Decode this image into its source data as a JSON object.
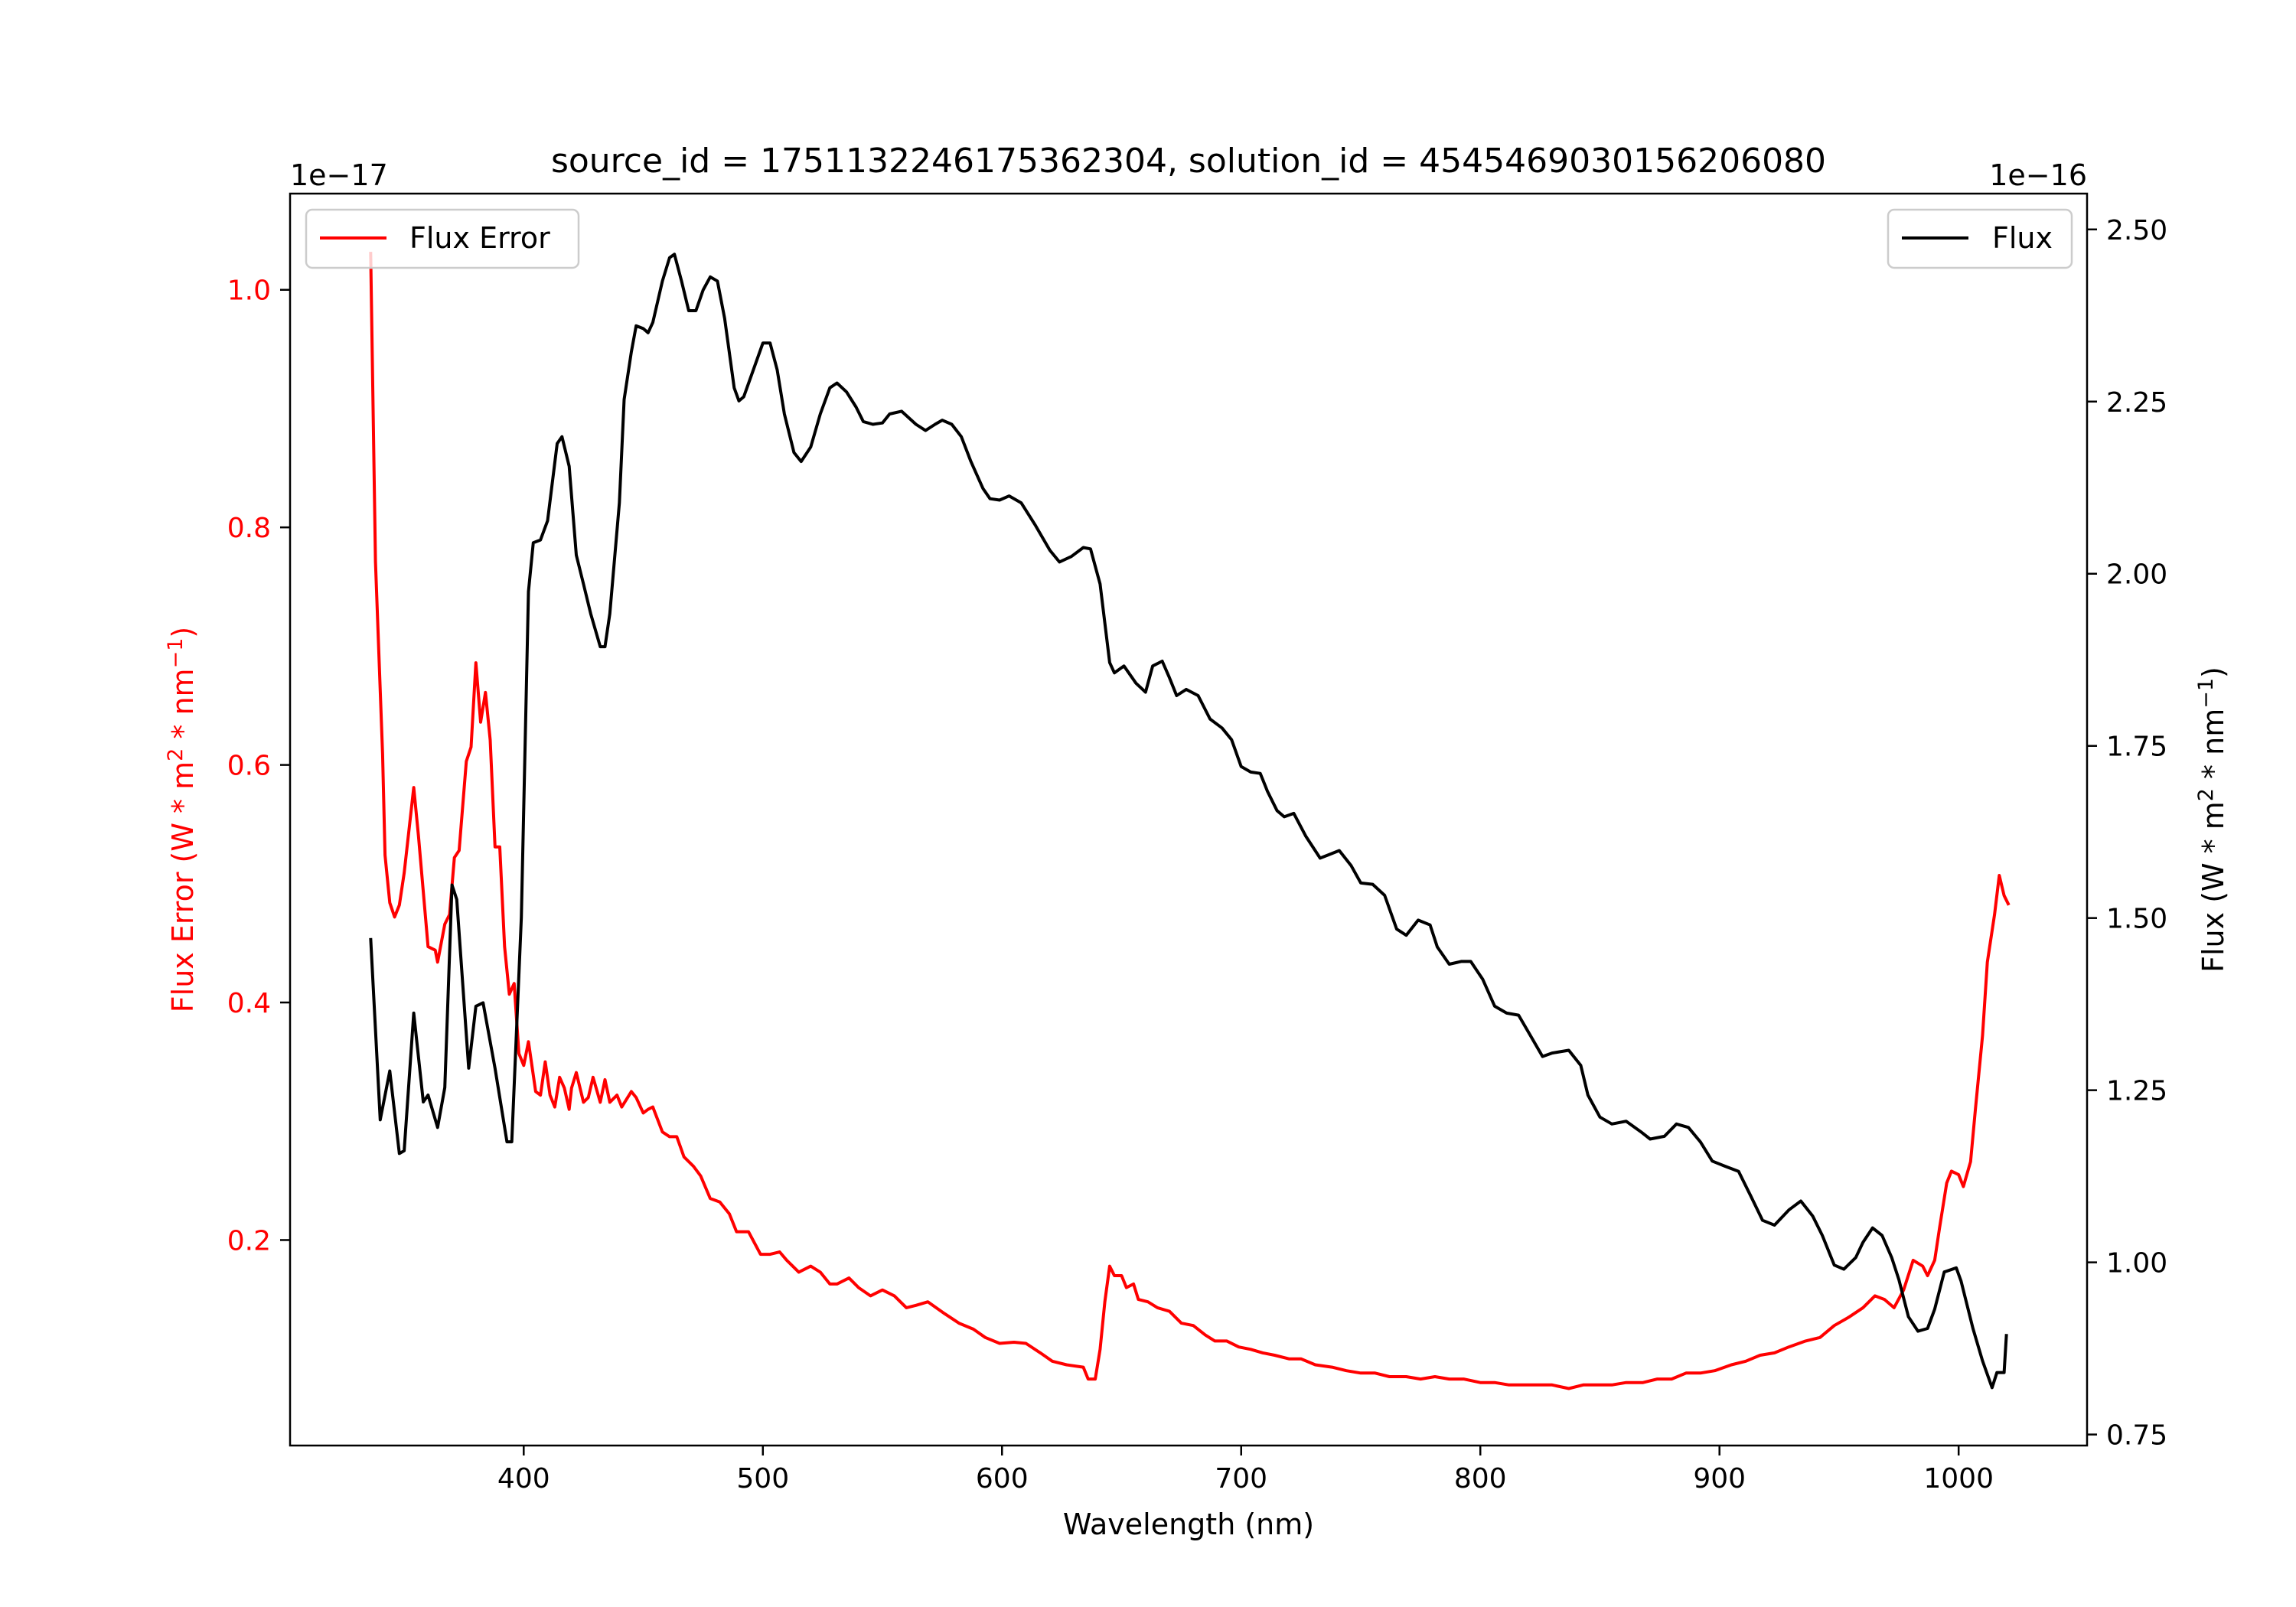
{
  "chart_data": {
    "type": "line",
    "title": "source_id = 1751132246175362304, solution_id = 4545469030156206080",
    "xlabel": "Wavelength (nm)",
    "ylabel_left": "Flux Error (W * m^2 * nm^-1)",
    "ylabel_right": "Flux (W * m^2 * nm^-1)",
    "ylabel_left_parts": [
      "Flux Error (W * m",
      "2",
      " * nm",
      "−1",
      ")"
    ],
    "ylabel_right_parts": [
      "Flux (W * m",
      "2",
      " * nm",
      "−1",
      ")"
    ],
    "left_offset_label": "1e−17",
    "right_offset_label": "1e−16",
    "xlim": [
      302.3,
      1053.7
    ],
    "ylim_left": [
      0.027,
      1.081
    ],
    "ylim_right": [
      0.734,
      2.552
    ],
    "x_ticks": [
      400,
      500,
      600,
      700,
      800,
      900,
      1000
    ],
    "x_tick_labels": [
      "400",
      "500",
      "600",
      "700",
      "800",
      "900",
      "1000"
    ],
    "left_ticks": [
      0.2,
      0.4,
      0.6,
      0.8,
      1.0
    ],
    "left_tick_labels": [
      "0.2",
      "0.4",
      "0.6",
      "0.8",
      "1.0"
    ],
    "right_ticks": [
      0.75,
      1.0,
      1.25,
      1.5,
      1.75,
      2.0,
      2.25,
      2.5
    ],
    "right_tick_labels": [
      "0.75",
      "1.00",
      "1.25",
      "1.50",
      "1.75",
      "2.00",
      "2.25",
      "2.50"
    ],
    "grid": false,
    "legend": [
      {
        "label": "Flux Error",
        "placement": "top-left",
        "axis": "left"
      },
      {
        "label": "Flux",
        "placement": "top-right",
        "axis": "right"
      }
    ],
    "series": [
      {
        "name": "Flux Error",
        "axis": "left",
        "color": "#ff0000",
        "x": [
          336,
          338,
          341,
          342,
          344,
          346,
          348,
          350,
          354,
          356,
          360,
          363,
          364,
          367,
          369,
          371,
          373,
          376,
          378,
          380,
          382,
          384,
          386,
          388,
          390,
          392,
          394,
          396,
          398,
          400,
          402,
          405,
          407,
          409,
          411,
          413,
          415,
          417,
          419,
          420,
          422,
          425,
          427,
          429,
          432,
          434,
          436,
          439,
          441,
          445,
          447,
          450,
          452,
          454,
          458,
          461,
          464,
          467,
          471,
          474,
          478,
          482,
          486,
          489,
          494,
          499,
          503,
          507,
          510,
          515,
          520,
          524,
          528,
          531,
          536,
          540,
          545,
          550,
          555,
          560,
          564,
          569,
          576,
          582,
          588,
          593,
          599,
          605,
          610,
          616,
          621,
          627,
          634,
          636,
          639,
          641,
          643,
          645,
          647,
          650,
          652,
          655,
          657,
          661,
          665,
          670,
          675,
          680,
          685,
          689,
          694,
          699,
          704,
          709,
          714,
          720,
          725,
          731,
          738,
          744,
          750,
          756,
          762,
          769,
          775,
          781,
          787,
          793,
          800,
          806,
          812,
          818,
          824,
          830,
          837,
          843,
          849,
          855,
          861,
          868,
          874,
          880,
          886,
          892,
          898,
          905,
          911,
          917,
          923,
          929,
          936,
          942,
          948,
          954,
          960,
          965,
          969,
          973,
          977,
          981,
          985,
          987,
          990,
          992,
          995,
          997,
          1000,
          1002,
          1005,
          1007,
          1010,
          1012,
          1015,
          1017,
          1019,
          1021
        ],
        "values": [
          1.032,
          0.771,
          0.609,
          0.524,
          0.484,
          0.472,
          0.482,
          0.509,
          0.581,
          0.54,
          0.447,
          0.444,
          0.434,
          0.466,
          0.474,
          0.522,
          0.528,
          0.603,
          0.615,
          0.686,
          0.636,
          0.661,
          0.621,
          0.531,
          0.531,
          0.447,
          0.407,
          0.416,
          0.357,
          0.347,
          0.367,
          0.325,
          0.322,
          0.35,
          0.322,
          0.312,
          0.337,
          0.328,
          0.31,
          0.328,
          0.341,
          0.316,
          0.32,
          0.337,
          0.316,
          0.335,
          0.316,
          0.322,
          0.312,
          0.325,
          0.32,
          0.307,
          0.31,
          0.312,
          0.291,
          0.287,
          0.287,
          0.27,
          0.262,
          0.254,
          0.235,
          0.232,
          0.222,
          0.207,
          0.207,
          0.188,
          0.188,
          0.19,
          0.183,
          0.173,
          0.178,
          0.173,
          0.163,
          0.163,
          0.168,
          0.16,
          0.153,
          0.158,
          0.153,
          0.143,
          0.145,
          0.148,
          0.138,
          0.13,
          0.125,
          0.118,
          0.113,
          0.114,
          0.113,
          0.105,
          0.098,
          0.095,
          0.093,
          0.083,
          0.083,
          0.108,
          0.148,
          0.178,
          0.17,
          0.17,
          0.16,
          0.163,
          0.15,
          0.148,
          0.143,
          0.14,
          0.13,
          0.128,
          0.12,
          0.115,
          0.115,
          0.11,
          0.108,
          0.105,
          0.103,
          0.1,
          0.1,
          0.095,
          0.093,
          0.09,
          0.088,
          0.088,
          0.085,
          0.085,
          0.083,
          0.085,
          0.083,
          0.083,
          0.08,
          0.08,
          0.078,
          0.078,
          0.078,
          0.078,
          0.075,
          0.078,
          0.078,
          0.078,
          0.08,
          0.08,
          0.083,
          0.083,
          0.088,
          0.088,
          0.09,
          0.095,
          0.098,
          0.103,
          0.105,
          0.11,
          0.115,
          0.118,
          0.128,
          0.135,
          0.143,
          0.153,
          0.15,
          0.143,
          0.158,
          0.183,
          0.178,
          0.17,
          0.183,
          0.21,
          0.248,
          0.258,
          0.255,
          0.245,
          0.266,
          0.31,
          0.372,
          0.434,
          0.474,
          0.507,
          0.49,
          0.482
        ]
      },
      {
        "name": "Flux",
        "axis": "right",
        "color": "#000000",
        "x": [
          336,
          340,
          344,
          348,
          350,
          354,
          358,
          360,
          364,
          367,
          370,
          372,
          377,
          380,
          383,
          388,
          393,
          395,
          399,
          402,
          404,
          407,
          410,
          414,
          416,
          419,
          422,
          425,
          428,
          432,
          434,
          436,
          440,
          442,
          445,
          447,
          450,
          452,
          454,
          458,
          461,
          463,
          466,
          469,
          472,
          475,
          478,
          481,
          484,
          488,
          490,
          492,
          496,
          500,
          503,
          506,
          509,
          513,
          516,
          520,
          524,
          528,
          531,
          535,
          539,
          542,
          546,
          550,
          553,
          558,
          564,
          568,
          572,
          575,
          579,
          583,
          587,
          592,
          595,
          599,
          603,
          608,
          614,
          620,
          624,
          629,
          634,
          637,
          641,
          645,
          647,
          651,
          656,
          660,
          663,
          667,
          670,
          673,
          677,
          682,
          687,
          692,
          696,
          700,
          704,
          708,
          711,
          715,
          718,
          722,
          727,
          733,
          736,
          741,
          746,
          750,
          755,
          760,
          765,
          769,
          774,
          779,
          782,
          787,
          792,
          796,
          801,
          806,
          811,
          816,
          821,
          826,
          830,
          837,
          842,
          845,
          850,
          855,
          861,
          867,
          871,
          877,
          882,
          887,
          892,
          897,
          902,
          908,
          913,
          918,
          923,
          929,
          934,
          939,
          943,
          948,
          952,
          957,
          960,
          964,
          968,
          972,
          975,
          979,
          983,
          987,
          990,
          994,
          999,
          1001,
          1006,
          1010,
          1014,
          1016,
          1019,
          1020
        ],
        "values": [
          1.471,
          1.207,
          1.278,
          1.158,
          1.162,
          1.362,
          1.233,
          1.243,
          1.196,
          1.254,
          1.548,
          1.527,
          1.282,
          1.372,
          1.377,
          1.282,
          1.175,
          1.175,
          1.501,
          1.974,
          2.045,
          2.049,
          2.077,
          2.189,
          2.199,
          2.156,
          2.027,
          1.985,
          1.942,
          1.894,
          1.894,
          1.942,
          2.103,
          2.253,
          2.322,
          2.36,
          2.356,
          2.35,
          2.365,
          2.425,
          2.459,
          2.464,
          2.425,
          2.382,
          2.382,
          2.412,
          2.431,
          2.425,
          2.371,
          2.27,
          2.251,
          2.257,
          2.296,
          2.335,
          2.335,
          2.296,
          2.232,
          2.176,
          2.163,
          2.184,
          2.232,
          2.27,
          2.277,
          2.264,
          2.242,
          2.221,
          2.217,
          2.219,
          2.232,
          2.236,
          2.217,
          2.208,
          2.217,
          2.223,
          2.217,
          2.199,
          2.163,
          2.124,
          2.109,
          2.107,
          2.113,
          2.103,
          2.07,
          2.034,
          2.017,
          2.025,
          2.038,
          2.036,
          1.985,
          1.871,
          1.856,
          1.866,
          1.841,
          1.828,
          1.866,
          1.873,
          1.849,
          1.823,
          1.832,
          1.823,
          1.789,
          1.776,
          1.759,
          1.72,
          1.712,
          1.71,
          1.684,
          1.656,
          1.647,
          1.652,
          1.619,
          1.587,
          1.591,
          1.598,
          1.576,
          1.551,
          1.549,
          1.533,
          1.484,
          1.475,
          1.497,
          1.49,
          1.458,
          1.433,
          1.437,
          1.437,
          1.411,
          1.372,
          1.362,
          1.359,
          1.329,
          1.299,
          1.304,
          1.308,
          1.286,
          1.243,
          1.211,
          1.201,
          1.205,
          1.19,
          1.179,
          1.183,
          1.201,
          1.196,
          1.175,
          1.147,
          1.14,
          1.132,
          1.097,
          1.061,
          1.054,
          1.076,
          1.089,
          1.067,
          1.039,
          0.996,
          0.99,
          1.007,
          1.029,
          1.05,
          1.039,
          1.007,
          0.975,
          0.921,
          0.9,
          0.904,
          0.932,
          0.986,
          0.992,
          0.973,
          0.904,
          0.857,
          0.818,
          0.84,
          0.84,
          0.896
        ]
      }
    ]
  }
}
